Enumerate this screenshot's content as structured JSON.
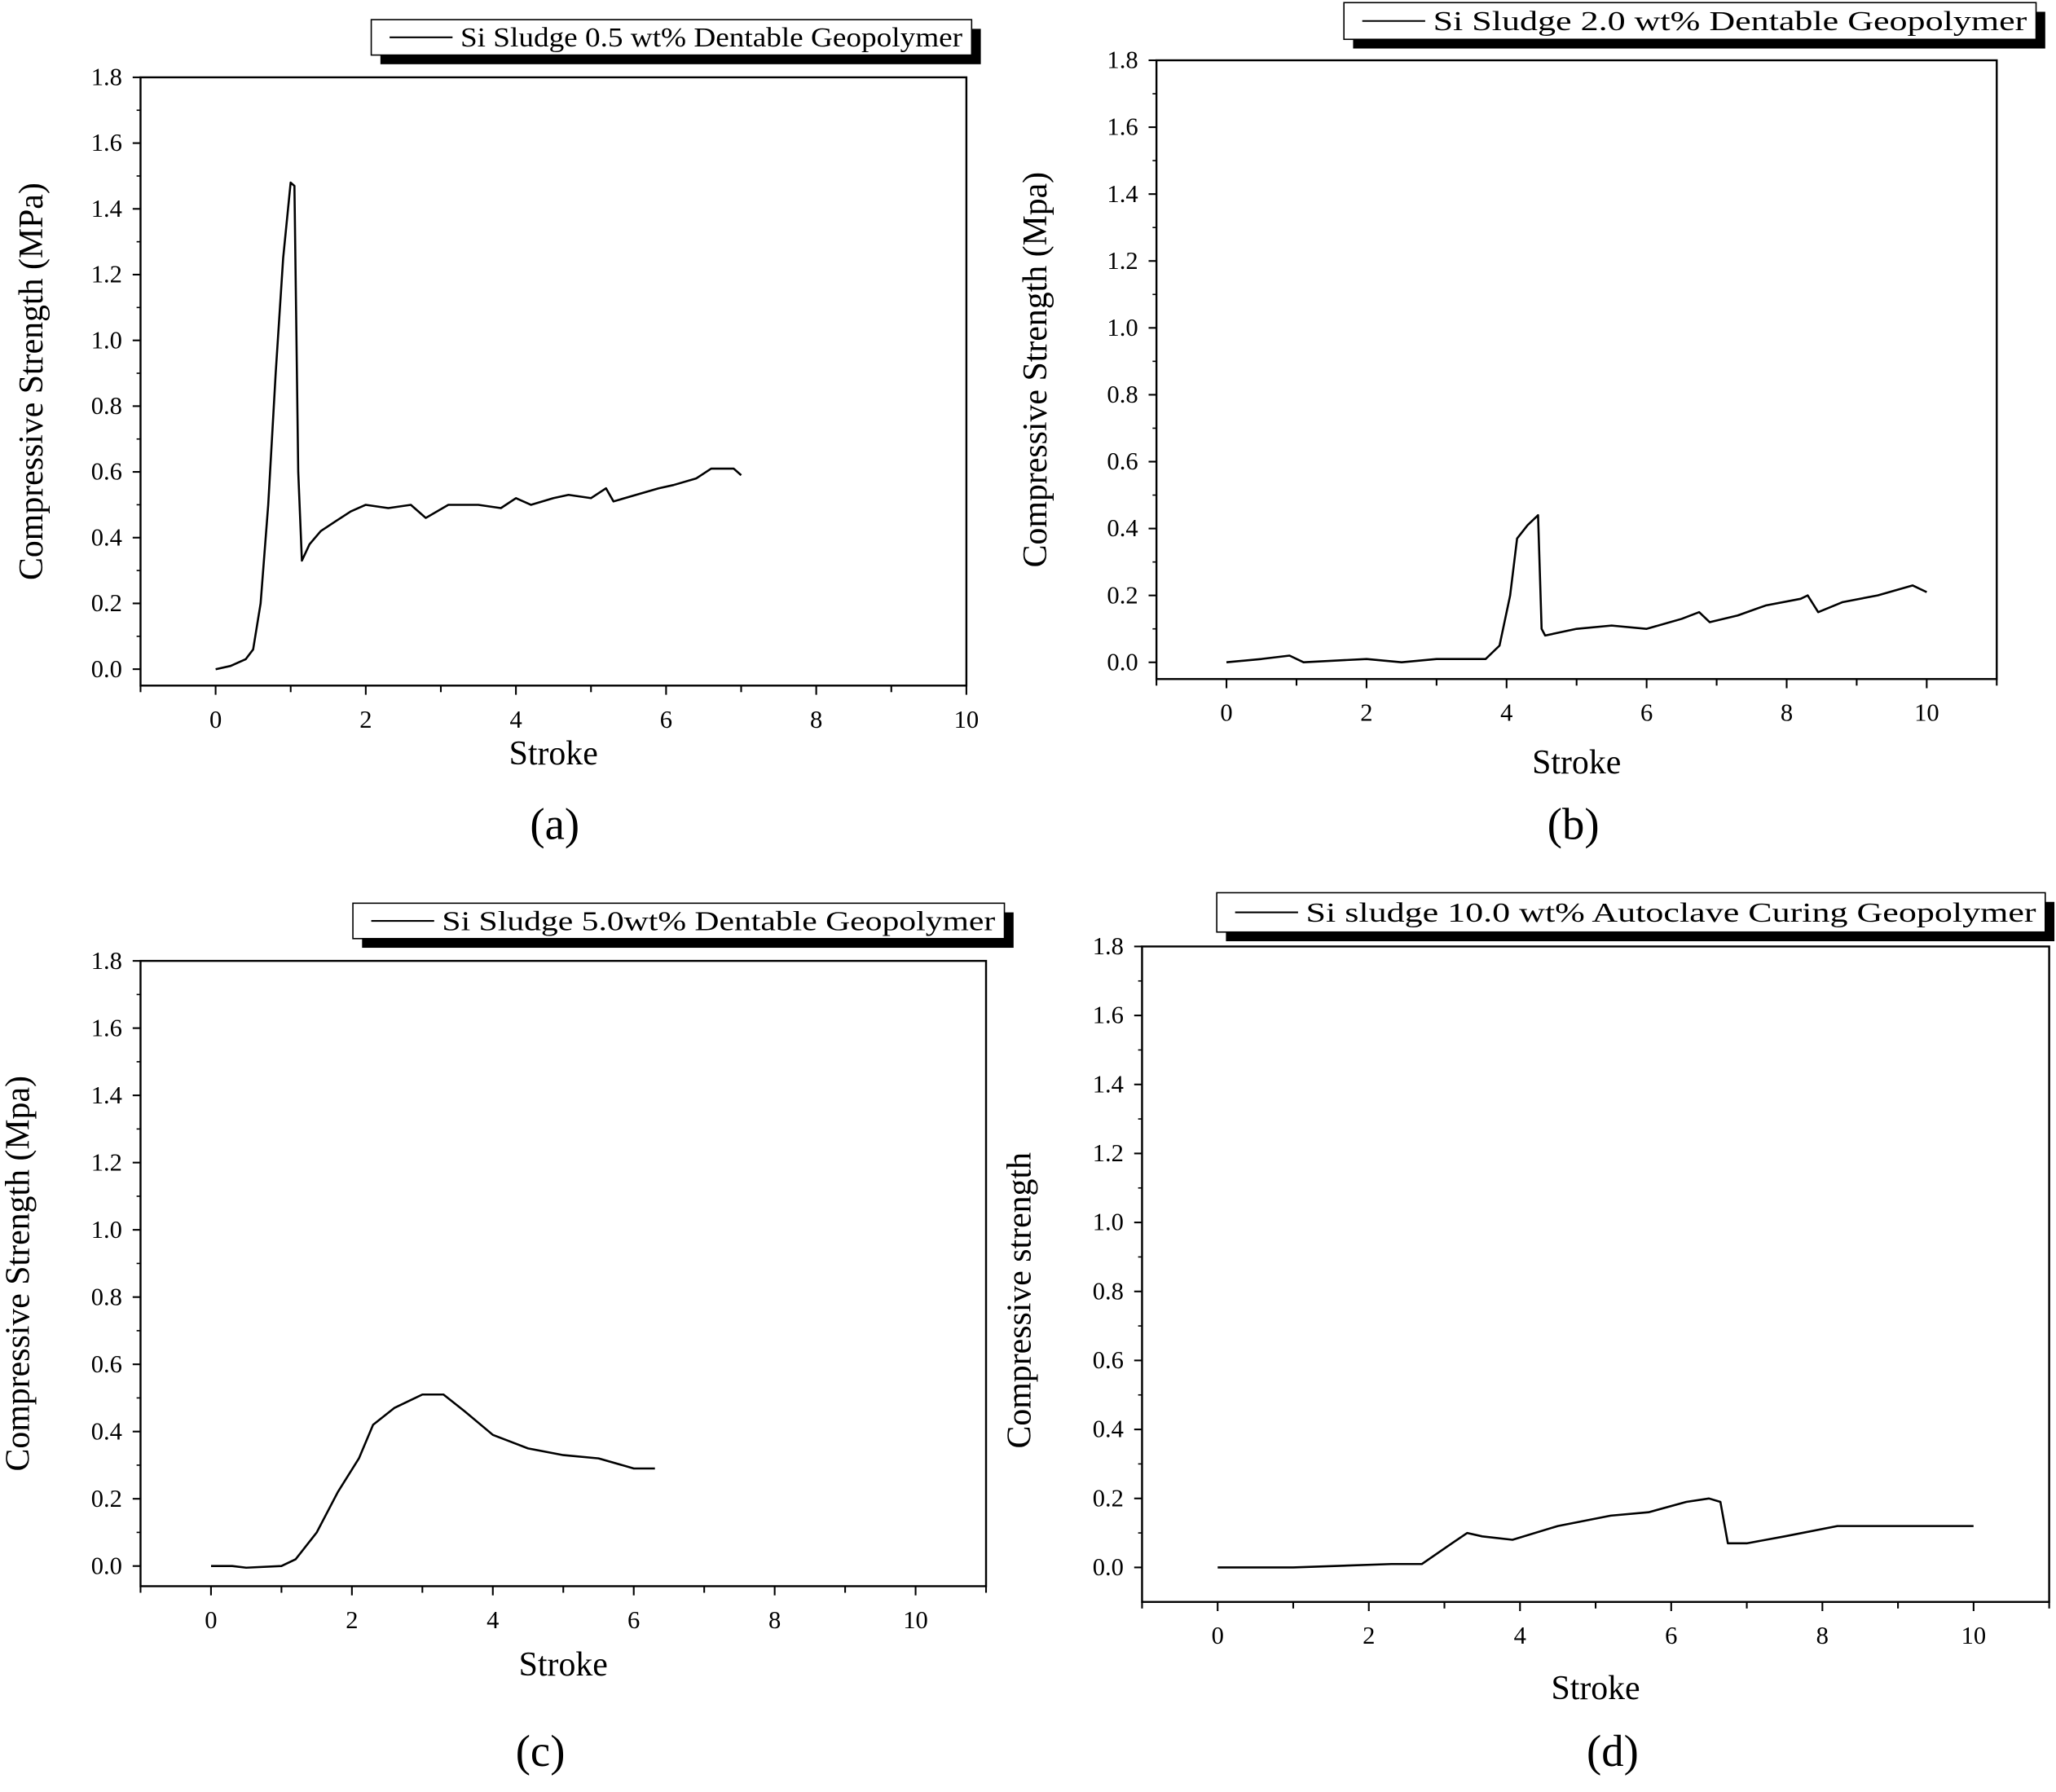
{
  "chart_data": [
    {
      "type": "line",
      "panel_label": "(a)",
      "legend": "Si Sludge 0.5 wt% Dentable Geopolymer",
      "legend_placement": "top-right",
      "xlabel": "Stroke",
      "ylabel": "Compressive Strength (MPa)",
      "xlim": [
        -1,
        10
      ],
      "ylim": [
        -0.05,
        1.8
      ],
      "xticks": [
        "0",
        "2",
        "4",
        "6",
        "8",
        "10"
      ],
      "yticks": [
        "0.0",
        "0.2",
        "0.4",
        "0.6",
        "0.8",
        "1.0",
        "1.2",
        "1.4",
        "1.6",
        "1.8"
      ],
      "series": [
        {
          "name": "Si Sludge 0.5 wt% Dentable Geopolymer",
          "points": [
            [
              0,
              0
            ],
            [
              0.2,
              0.01
            ],
            [
              0.4,
              0.03
            ],
            [
              0.5,
              0.06
            ],
            [
              0.6,
              0.2
            ],
            [
              0.7,
              0.5
            ],
            [
              0.8,
              0.9
            ],
            [
              0.9,
              1.25
            ],
            [
              1.0,
              1.48
            ],
            [
              1.05,
              1.47
            ],
            [
              1.1,
              0.6
            ],
            [
              1.15,
              0.33
            ],
            [
              1.25,
              0.38
            ],
            [
              1.4,
              0.42
            ],
            [
              1.6,
              0.45
            ],
            [
              1.8,
              0.48
            ],
            [
              2.0,
              0.5
            ],
            [
              2.3,
              0.49
            ],
            [
              2.6,
              0.5
            ],
            [
              2.8,
              0.46
            ],
            [
              3.1,
              0.5
            ],
            [
              3.5,
              0.5
            ],
            [
              3.8,
              0.49
            ],
            [
              4.0,
              0.52
            ],
            [
              4.2,
              0.5
            ],
            [
              4.5,
              0.52
            ],
            [
              4.7,
              0.53
            ],
            [
              5.0,
              0.52
            ],
            [
              5.2,
              0.55
            ],
            [
              5.3,
              0.51
            ],
            [
              5.6,
              0.53
            ],
            [
              5.9,
              0.55
            ],
            [
              6.1,
              0.56
            ],
            [
              6.4,
              0.58
            ],
            [
              6.6,
              0.61
            ],
            [
              6.9,
              0.61
            ],
            [
              7.0,
              0.59
            ]
          ]
        }
      ]
    },
    {
      "type": "line",
      "panel_label": "(b)",
      "legend": "Si Sludge 2.0 wt% Dentable Geopolymer",
      "legend_placement": "top-right",
      "xlabel": "Stroke",
      "ylabel": "Compressive Strength (Mpa)",
      "xlim": [
        -1,
        11
      ],
      "ylim": [
        -0.05,
        1.8
      ],
      "xticks": [
        "0",
        "2",
        "4",
        "6",
        "8",
        "10"
      ],
      "yticks": [
        "0.0",
        "0.2",
        "0.4",
        "0.6",
        "0.8",
        "1.0",
        "1.2",
        "1.4",
        "1.6",
        "1.8"
      ],
      "series": [
        {
          "name": "Si Sludge 2.0 wt% Dentable Geopolymer",
          "points": [
            [
              0,
              0
            ],
            [
              0.5,
              0.01
            ],
            [
              0.9,
              0.02
            ],
            [
              1.1,
              0.0
            ],
            [
              2,
              0.01
            ],
            [
              2.5,
              0.0
            ],
            [
              3,
              0.01
            ],
            [
              3.7,
              0.01
            ],
            [
              3.9,
              0.05
            ],
            [
              4.05,
              0.2
            ],
            [
              4.15,
              0.37
            ],
            [
              4.3,
              0.41
            ],
            [
              4.45,
              0.44
            ],
            [
              4.5,
              0.1
            ],
            [
              4.55,
              0.08
            ],
            [
              5,
              0.1
            ],
            [
              5.5,
              0.11
            ],
            [
              6,
              0.1
            ],
            [
              6.5,
              0.13
            ],
            [
              6.75,
              0.15
            ],
            [
              6.9,
              0.12
            ],
            [
              7.3,
              0.14
            ],
            [
              7.7,
              0.17
            ],
            [
              8.2,
              0.19
            ],
            [
              8.3,
              0.2
            ],
            [
              8.45,
              0.15
            ],
            [
              8.8,
              0.18
            ],
            [
              9.3,
              0.2
            ],
            [
              9.8,
              0.23
            ],
            [
              10,
              0.21
            ]
          ]
        }
      ]
    },
    {
      "type": "line",
      "panel_label": "(c)",
      "legend": "Si Sludge 5.0wt% Dentable Geopolymer",
      "legend_placement": "top-right",
      "xlabel": "Stroke",
      "ylabel": "Compressive Strength (Mpa)",
      "xlim": [
        -1,
        11
      ],
      "ylim": [
        -0.06,
        1.8
      ],
      "xticks": [
        "0",
        "2",
        "4",
        "6",
        "8",
        "10"
      ],
      "yticks": [
        "0.0",
        "0.2",
        "0.4",
        "0.6",
        "0.8",
        "1.0",
        "1.2",
        "1.4",
        "1.6",
        "1.8"
      ],
      "series": [
        {
          "name": "Si Sludge 5.0wt% Dentable Geopolymer",
          "points": [
            [
              0,
              0.0
            ],
            [
              0.3,
              0.0
            ],
            [
              0.5,
              -0.005
            ],
            [
              1,
              0.0
            ],
            [
              1.2,
              0.02
            ],
            [
              1.5,
              0.1
            ],
            [
              1.8,
              0.22
            ],
            [
              2.1,
              0.32
            ],
            [
              2.3,
              0.42
            ],
            [
              2.6,
              0.47
            ],
            [
              3,
              0.51
            ],
            [
              3.3,
              0.51
            ],
            [
              3.6,
              0.46
            ],
            [
              4,
              0.39
            ],
            [
              4.5,
              0.35
            ],
            [
              5,
              0.33
            ],
            [
              5.5,
              0.32
            ],
            [
              6,
              0.29
            ],
            [
              6.3,
              0.29
            ]
          ]
        }
      ]
    },
    {
      "type": "line",
      "panel_label": "(d)",
      "legend": "Si sludge 10.0 wt% Autoclave Curing Geopolymer",
      "legend_placement": "top-right",
      "xlabel": "Stroke",
      "ylabel": "Compressive strength",
      "xlim": [
        -1,
        11
      ],
      "ylim": [
        -0.1,
        1.8
      ],
      "xticks": [
        "0",
        "2",
        "4",
        "6",
        "8",
        "10"
      ],
      "yticks": [
        "0.0",
        "0.2",
        "0.4",
        "0.6",
        "0.8",
        "1.0",
        "1.2",
        "1.4",
        "1.6",
        "1.8"
      ],
      "series": [
        {
          "name": "Si sludge 10.0 wt% Autoclave Curing Geopolymer",
          "points": [
            [
              0,
              0
            ],
            [
              1,
              0.0
            ],
            [
              2.3,
              0.01
            ],
            [
              2.7,
              0.01
            ],
            [
              3.1,
              0.07
            ],
            [
              3.3,
              0.1
            ],
            [
              3.5,
              0.09
            ],
            [
              3.9,
              0.08
            ],
            [
              4.5,
              0.12
            ],
            [
              5.2,
              0.15
            ],
            [
              5.7,
              0.16
            ],
            [
              6.2,
              0.19
            ],
            [
              6.5,
              0.2
            ],
            [
              6.65,
              0.19
            ],
            [
              6.75,
              0.07
            ],
            [
              7,
              0.07
            ],
            [
              7.5,
              0.09
            ],
            [
              8.2,
              0.12
            ],
            [
              9,
              0.12
            ],
            [
              10,
              0.12
            ]
          ]
        }
      ]
    }
  ]
}
